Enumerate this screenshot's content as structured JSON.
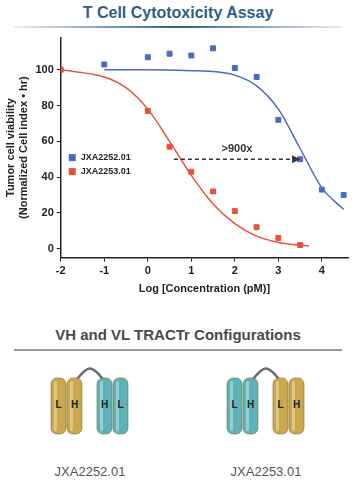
{
  "chart_data": {
    "type": "scatter",
    "title": "T Cell Cytotoxicity Assay",
    "x_label": "Log [Concentration (pM)]",
    "y_label": [
      "Tumor cell viability",
      "(Normalized Cell index • hr)"
    ],
    "xlim": [
      -2,
      4.6
    ],
    "xticks": [
      -2,
      -1,
      0,
      1,
      2,
      3,
      4
    ],
    "ylim": [
      -5,
      118
    ],
    "yticks": [
      0,
      20,
      40,
      60,
      80,
      100
    ],
    "grid": false,
    "legend": "lower left",
    "series": [
      {
        "name": "JXA2252.01",
        "color": "#4a6cc0",
        "marker": "square",
        "line_style": "solid",
        "x": [
          -1,
          0,
          0.5,
          1,
          1.5,
          2,
          2.5,
          3,
          3.5,
          4,
          4.5
        ],
        "values": [
          103,
          107,
          109,
          108,
          112,
          101,
          96,
          72,
          50,
          33,
          30
        ],
        "fit_x": [
          -1,
          0,
          1,
          1.5,
          2,
          2.5,
          3,
          3.5,
          4,
          4.5
        ],
        "fit_values": [
          100,
          100,
          99.5,
          99,
          97,
          91,
          78,
          56,
          34,
          22
        ]
      },
      {
        "name": "JXA2253.01",
        "color": "#e5533c",
        "marker": "square",
        "line_style": "solid",
        "x": [
          -2,
          0,
          0.5,
          1,
          1.5,
          2,
          2.5,
          3,
          3.5
        ],
        "values": [
          100,
          77,
          57,
          43,
          32,
          21,
          12,
          6,
          2
        ],
        "fit_x": [
          -2,
          -1,
          -0.5,
          0,
          0.5,
          1,
          1.5,
          2,
          2.5,
          3,
          3.7
        ],
        "fit_values": [
          100,
          96,
          90,
          78,
          60,
          41,
          25,
          14,
          7,
          3.5,
          1.5
        ]
      }
    ],
    "annotation": {
      "text": ">900x",
      "x_start": 0.6,
      "x_end": 3.5,
      "y": 50
    }
  },
  "diagram": {
    "title": "VH and VL TRACTr Configurations",
    "constructs": [
      {
        "name": "JXA2252.01",
        "domains": [
          {
            "labels": [
              "L",
              "H"
            ],
            "color": "#c9a84e"
          },
          {
            "labels": [
              "H",
              "L"
            ],
            "color": "#5fb3b8"
          }
        ]
      },
      {
        "name": "JXA2253.01",
        "domains": [
          {
            "labels": [
              "L",
              "H"
            ],
            "color": "#5fb3b8"
          },
          {
            "labels": [
              "L",
              "H"
            ],
            "color": "#c9a84e"
          }
        ]
      }
    ]
  }
}
